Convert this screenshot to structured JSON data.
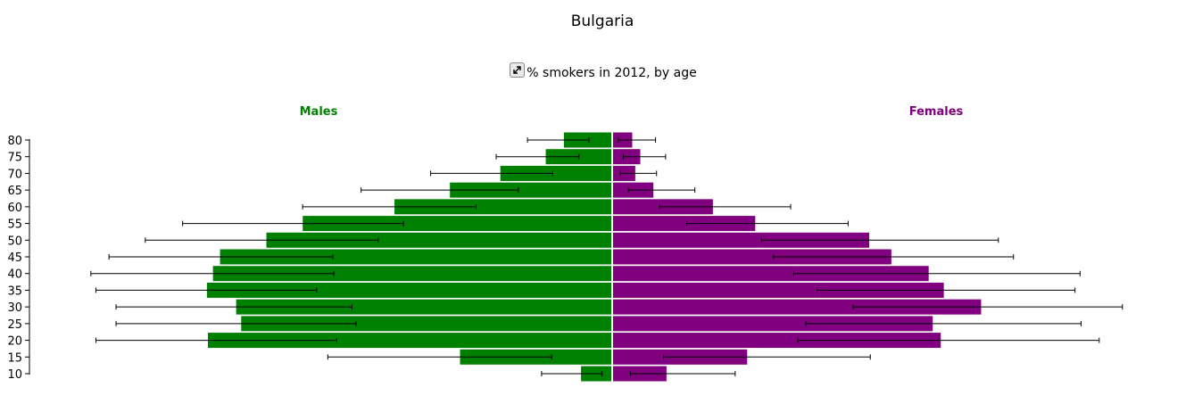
{
  "title": "Bulgaria",
  "subtitle": "% smokers in 2012, by age",
  "expand_icon": "expand-arrows-icon",
  "chart_data": {
    "type": "bar",
    "orientation": "population-pyramid",
    "categories": [
      "10",
      "15",
      "20",
      "25",
      "30",
      "35",
      "40",
      "45",
      "50",
      "55",
      "60",
      "65",
      "70",
      "75",
      "80"
    ],
    "series": [
      {
        "name": "Males",
        "color": "#008000",
        "values": [
          3,
          15,
          40,
          36.7,
          37.2,
          40.1,
          39.5,
          38.8,
          34.2,
          30.6,
          21.5,
          16,
          11,
          6.5,
          4.7
        ],
        "error_low": [
          1,
          6,
          27.3,
          25.4,
          25.8,
          29.3,
          27.6,
          27.7,
          23.2,
          20.7,
          13.5,
          9.3,
          5.9,
          3.3,
          2.3
        ],
        "error_high": [
          7,
          28.2,
          51.2,
          49.2,
          49.2,
          51.2,
          51.7,
          49.9,
          46.3,
          42.6,
          30.7,
          24.9,
          18,
          11.5,
          8.4
        ]
      },
      {
        "name": "Females",
        "color": "#800080",
        "values": [
          5.3,
          13.3,
          32.5,
          31.7,
          36.5,
          32.8,
          31.3,
          27.6,
          25.4,
          14.1,
          9.9,
          4,
          2.2,
          2.7,
          1.9
        ],
        "error_low": [
          1.8,
          5.1,
          18.4,
          19.2,
          23.9,
          20.3,
          18,
          16,
          14.8,
          7.4,
          4.7,
          1.6,
          0.8,
          1.1,
          0.6
        ],
        "error_high": [
          12.2,
          25.6,
          48.3,
          46.5,
          50.6,
          45.9,
          46.4,
          39.8,
          38.3,
          23.4,
          17.7,
          8.2,
          4.4,
          5.3,
          4.3
        ]
      }
    ],
    "x_range": [
      0,
      51.5
    ],
    "grid": false
  }
}
